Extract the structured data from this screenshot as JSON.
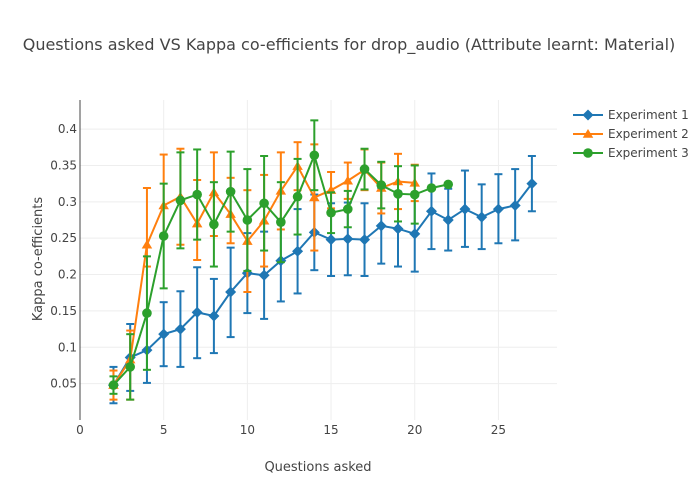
{
  "chart_data": {
    "type": "line",
    "title": "Questions asked VS Kappa co-efficients for drop_audio (Attribute learnt: Material)",
    "xlabel": "Questions asked",
    "ylabel": "Kappa co-efficients",
    "xlim": [
      0,
      28.5
    ],
    "ylim": [
      0,
      0.44
    ],
    "x_ticks": [
      0,
      5,
      10,
      15,
      20,
      25
    ],
    "y_ticks": [
      0.05,
      0.1,
      0.15,
      0.2,
      0.25,
      0.3,
      0.35,
      0.4
    ],
    "x_tick_labels": [
      "0",
      "5",
      "10",
      "15",
      "20",
      "25"
    ],
    "y_tick_labels": [
      "0.05",
      "0.1",
      "0.15",
      "0.2",
      "0.25",
      "0.3",
      "0.35",
      "0.4"
    ],
    "grid": true,
    "legend_position": "top-right",
    "series": [
      {
        "name": "Experiment 1",
        "color": "#1f77b4",
        "marker": "diamond",
        "x": [
          2,
          3,
          4,
          5,
          6,
          7,
          8,
          9,
          10,
          11,
          12,
          13,
          14,
          15,
          16,
          17,
          18,
          19,
          20,
          21,
          22,
          23,
          24,
          25,
          26,
          27
        ],
        "y": [
          0.048,
          0.086,
          0.096,
          0.118,
          0.125,
          0.148,
          0.143,
          0.176,
          0.202,
          0.199,
          0.219,
          0.232,
          0.258,
          0.248,
          0.249,
          0.248,
          0.267,
          0.263,
          0.256,
          0.287,
          0.275,
          0.29,
          0.279,
          0.29,
          0.295,
          0.325
        ],
        "err_plus": [
          0.025,
          0.046,
          0.048,
          0.044,
          0.052,
          0.062,
          0.051,
          0.061,
          0.055,
          0.06,
          0.056,
          0.058,
          0.052,
          0.05,
          0.05,
          0.05,
          0.052,
          0.051,
          0.052,
          0.052,
          0.043,
          0.053,
          0.045,
          0.048,
          0.05,
          0.038
        ],
        "err_minus": [
          0.025,
          0.046,
          0.045,
          0.044,
          0.052,
          0.063,
          0.051,
          0.062,
          0.055,
          0.06,
          0.056,
          0.058,
          0.052,
          0.05,
          0.05,
          0.05,
          0.052,
          0.052,
          0.052,
          0.052,
          0.042,
          0.052,
          0.044,
          0.047,
          0.048,
          0.038
        ]
      },
      {
        "name": "Experiment 2",
        "color": "#ff7f0e",
        "marker": "triangle-up",
        "x": [
          2,
          3,
          4,
          5,
          6,
          7,
          8,
          9,
          10,
          11,
          12,
          13,
          14,
          15,
          16,
          17,
          18,
          19,
          20
        ],
        "y": [
          0.048,
          0.083,
          0.241,
          0.295,
          0.307,
          0.27,
          0.313,
          0.283,
          0.246,
          0.274,
          0.315,
          0.349,
          0.306,
          0.316,
          0.329,
          0.344,
          0.319,
          0.328,
          0.326
        ],
        "err_plus": [
          0.02,
          0.04,
          0.078,
          0.07,
          0.066,
          0.06,
          0.055,
          0.05,
          0.07,
          0.063,
          0.053,
          0.033,
          0.073,
          0.025,
          0.025,
          0.028,
          0.035,
          0.038,
          0.025
        ],
        "err_minus": [
          0.02,
          0.055,
          0.03,
          0.04,
          0.066,
          0.05,
          0.06,
          0.04,
          0.07,
          0.063,
          0.053,
          0.033,
          0.073,
          0.025,
          0.025,
          0.028,
          0.035,
          0.038,
          0.025
        ]
      },
      {
        "name": "Experiment 3",
        "color": "#2ca02c",
        "marker": "circle",
        "x": [
          2,
          3,
          4,
          5,
          6,
          7,
          8,
          9,
          10,
          11,
          12,
          13,
          14,
          15,
          16,
          17,
          18,
          19,
          20,
          21,
          22
        ],
        "y": [
          0.048,
          0.073,
          0.147,
          0.253,
          0.302,
          0.31,
          0.269,
          0.314,
          0.275,
          0.298,
          0.272,
          0.307,
          0.364,
          0.285,
          0.29,
          0.345,
          0.323,
          0.311,
          0.31,
          0.319,
          0.324
        ],
        "err_plus": [
          0.012,
          0.045,
          0.078,
          0.072,
          0.066,
          0.062,
          0.058,
          0.055,
          0.07,
          0.065,
          0.055,
          0.052,
          0.048,
          0.028,
          0.025,
          0.028,
          0.032,
          0.038,
          0.04,
          0.0,
          0.0
        ],
        "err_minus": [
          0.012,
          0.045,
          0.078,
          0.072,
          0.066,
          0.062,
          0.058,
          0.055,
          0.07,
          0.065,
          0.055,
          0.052,
          0.048,
          0.028,
          0.025,
          0.028,
          0.032,
          0.038,
          0.04,
          0.0,
          0.0
        ]
      }
    ]
  }
}
